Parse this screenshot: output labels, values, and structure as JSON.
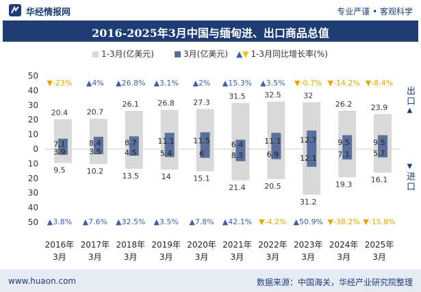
{
  "header": {
    "brand": "华经情报网",
    "slogan": "专业严谨 • 客观科学",
    "title": "2016-2025年3月中国与缅甸进、出口商品总值"
  },
  "legend": {
    "total": "1-3月(亿美元)",
    "march": "3月(亿美元)",
    "growth": "1-3月同比增长率(%)"
  },
  "side_labels": {
    "export": "出口",
    "import": "进口"
  },
  "footer": {
    "website": "www.huaon.com",
    "source": "数据来源：中国海关，华经产业研究院整理"
  },
  "colors": {
    "total_bar": "#d9d9d9",
    "march_bar": "#5b6f9c",
    "up": "#3f5fa8",
    "down": "#f5c200",
    "title_bg": "#1e3d75"
  },
  "chart_data": {
    "type": "bar",
    "title": "2016-2025年3月中国与缅甸进、出口商品总值",
    "categories": [
      "2016年\n3月",
      "2017年\n3月",
      "2018年\n3月",
      "2019年\n3月",
      "2020年\n3月",
      "2021年\n3月",
      "2022年\n3月",
      "2023年\n3月",
      "2024年\n3月",
      "2025年\n3月"
    ],
    "ylim": [
      -50,
      50
    ],
    "yticks": [
      50,
      40,
      30,
      20,
      10,
      0,
      -10,
      -20,
      -30,
      -40,
      -50
    ],
    "ytick_labels": [
      "50",
      "40",
      "30",
      "20",
      "10",
      "0",
      "10",
      "20",
      "30",
      "40",
      "50"
    ],
    "series": [
      {
        "name": "出口 1-3月(亿美元)",
        "values": [
          20.4,
          20.7,
          26.1,
          26.8,
          27.3,
          31.5,
          32.5,
          32,
          26.2,
          23.9
        ]
      },
      {
        "name": "出口 3月(亿美元)",
        "values": [
          7.1,
          8.4,
          8.7,
          11.1,
          11.5,
          6.4,
          11.1,
          12.7,
          9.5,
          9.5
        ]
      },
      {
        "name": "进口 1-3月(亿美元)",
        "values": [
          9.5,
          10.2,
          13.5,
          14,
          15.1,
          21.4,
          20.5,
          31.2,
          19.3,
          16.1
        ]
      },
      {
        "name": "进口 3月(亿美元)",
        "values": [
          3.9,
          3.5,
          4.5,
          5.4,
          6,
          8.3,
          6.9,
          12.1,
          7.1,
          5.7
        ]
      },
      {
        "name": "出口 1-3月同比增长率(%)",
        "values": [
          -23,
          4,
          26.8,
          3.1,
          2,
          15.3,
          3.5,
          -0.7,
          -14.2,
          -8.4
        ],
        "labels": [
          "-23%",
          "4%",
          "26.8%",
          "3.1%",
          "2%",
          "15.3%",
          "3.5%",
          "-0.7%",
          "-14.2%",
          "-8.4%"
        ]
      },
      {
        "name": "进口 1-3月同比增长率(%)",
        "values": [
          3.8,
          7.6,
          32.5,
          3.5,
          7.8,
          42.1,
          -4.2,
          50.9,
          -38.2,
          -15.8
        ],
        "labels": [
          "3.8%",
          "7.6%",
          "32.5%",
          "3.5%",
          "7.8%",
          "42.1%",
          "-4.2%",
          "50.9%",
          "-38.2%",
          "-15.8%"
        ]
      }
    ],
    "export_total_labels": [
      "20.4",
      "20.7",
      "26.1",
      "26.8",
      "27.3",
      "31.5",
      "32.5",
      "32",
      "26.2",
      "23.9"
    ],
    "export_march_labels": [
      "7.1",
      "8.4",
      "8.7",
      "11.1",
      "11.5",
      "6.4",
      "11.1",
      "12.7",
      "9.5",
      "9.5"
    ],
    "import_total_labels": [
      "9.5",
      "10.2",
      "13.5",
      "14",
      "15.1",
      "21.4",
      "20.5",
      "31.2",
      "19.3",
      "16.1"
    ],
    "import_march_labels": [
      "3.9",
      "3.5",
      "4.5",
      "5.4",
      "6",
      "8.3",
      "6.9",
      "12.1",
      "7.1",
      "5.7"
    ],
    "grid": false,
    "legend_position": "top"
  }
}
